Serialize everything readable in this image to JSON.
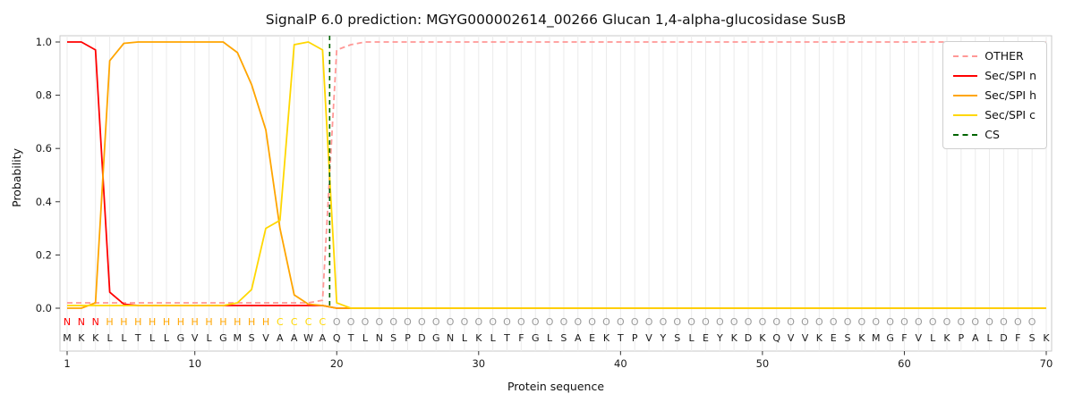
{
  "title": "SignalP 6.0 prediction: MGYG000002614_00266 Glucan 1,4-alpha-glucosidase SusB",
  "axes": {
    "xlabel": "Protein sequence",
    "ylabel": "Probability",
    "x_ticks": [
      1,
      10,
      20,
      30,
      40,
      50,
      60,
      70
    ],
    "y_ticks": [
      0.0,
      0.2,
      0.4,
      0.6,
      0.8,
      1.0
    ]
  },
  "legend": {
    "position": "top-right",
    "items": [
      {
        "label": "OTHER",
        "color": "#ff9896",
        "style": "dashed"
      },
      {
        "label": "Sec/SPI n",
        "color": "#ff0000",
        "style": "solid"
      },
      {
        "label": "Sec/SPI h",
        "color": "#ffa500",
        "style": "solid"
      },
      {
        "label": "Sec/SPI c",
        "color": "#ffd700",
        "style": "solid"
      },
      {
        "label": "CS",
        "color": "#006400",
        "style": "dashed"
      }
    ]
  },
  "chart_data": {
    "type": "line",
    "x_start": 1,
    "x_end": 70,
    "ylim": [
      -0.16,
      1.02
    ],
    "grid": "vertical-line-per-residue",
    "series": [
      {
        "name": "OTHER",
        "color": "#ff9896",
        "dash": [
          6,
          4
        ],
        "values": [
          0.02,
          0.02,
          0.02,
          0.02,
          0.02,
          0.02,
          0.02,
          0.02,
          0.02,
          0.02,
          0.02,
          0.02,
          0.02,
          0.02,
          0.02,
          0.02,
          0.02,
          0.02,
          0.03,
          0.97,
          0.99,
          1.0,
          1.0,
          1.0,
          1.0,
          1.0,
          1.0,
          1.0,
          1.0,
          1.0,
          1.0,
          1.0,
          1.0,
          1.0,
          1.0,
          1.0,
          1.0,
          1.0,
          1.0,
          1.0,
          1.0,
          1.0,
          1.0,
          1.0,
          1.0,
          1.0,
          1.0,
          1.0,
          1.0,
          1.0,
          1.0,
          1.0,
          1.0,
          1.0,
          1.0,
          1.0,
          1.0,
          1.0,
          1.0,
          1.0,
          1.0,
          1.0,
          1.0,
          1.0,
          1.0,
          1.0,
          1.0,
          1.0,
          1.0,
          1.0
        ]
      },
      {
        "name": "Sec/SPI n",
        "color": "#ff0000",
        "dash": null,
        "values": [
          1.0,
          1.0,
          0.97,
          0.06,
          0.015,
          0.01,
          0.01,
          0.01,
          0.01,
          0.01,
          0.01,
          0.01,
          0.01,
          0.01,
          0.01,
          0.01,
          0.01,
          0.01,
          0.01,
          0.0,
          0.0,
          0.0,
          0.0,
          0.0,
          0.0,
          0.0,
          0.0,
          0.0,
          0.0,
          0.0,
          0.0,
          0.0,
          0.0,
          0.0,
          0.0,
          0.0,
          0.0,
          0.0,
          0.0,
          0.0,
          0.0,
          0.0,
          0.0,
          0.0,
          0.0,
          0.0,
          0.0,
          0.0,
          0.0,
          0.0,
          0.0,
          0.0,
          0.0,
          0.0,
          0.0,
          0.0,
          0.0,
          0.0,
          0.0,
          0.0,
          0.0,
          0.0,
          0.0,
          0.0,
          0.0,
          0.0,
          0.0,
          0.0,
          0.0,
          0.0
        ]
      },
      {
        "name": "Sec/SPI h",
        "color": "#ffa500",
        "dash": null,
        "values": [
          0.0,
          0.0,
          0.02,
          0.93,
          0.995,
          1.0,
          1.0,
          1.0,
          1.0,
          1.0,
          1.0,
          1.0,
          0.96,
          0.84,
          0.67,
          0.3,
          0.05,
          0.015,
          0.01,
          0.0,
          0.0,
          0.0,
          0.0,
          0.0,
          0.0,
          0.0,
          0.0,
          0.0,
          0.0,
          0.0,
          0.0,
          0.0,
          0.0,
          0.0,
          0.0,
          0.0,
          0.0,
          0.0,
          0.0,
          0.0,
          0.0,
          0.0,
          0.0,
          0.0,
          0.0,
          0.0,
          0.0,
          0.0,
          0.0,
          0.0,
          0.0,
          0.0,
          0.0,
          0.0,
          0.0,
          0.0,
          0.0,
          0.0,
          0.0,
          0.0,
          0.0,
          0.0,
          0.0,
          0.0,
          0.0,
          0.0,
          0.0,
          0.0,
          0.0,
          0.0
        ]
      },
      {
        "name": "Sec/SPI c",
        "color": "#ffd700",
        "dash": null,
        "values": [
          0.01,
          0.01,
          0.01,
          0.01,
          0.01,
          0.01,
          0.01,
          0.01,
          0.01,
          0.01,
          0.01,
          0.01,
          0.02,
          0.07,
          0.3,
          0.33,
          0.99,
          1.0,
          0.97,
          0.02,
          0.0,
          0.0,
          0.0,
          0.0,
          0.0,
          0.0,
          0.0,
          0.0,
          0.0,
          0.0,
          0.0,
          0.0,
          0.0,
          0.0,
          0.0,
          0.0,
          0.0,
          0.0,
          0.0,
          0.0,
          0.0,
          0.0,
          0.0,
          0.0,
          0.0,
          0.0,
          0.0,
          0.0,
          0.0,
          0.0,
          0.0,
          0.0,
          0.0,
          0.0,
          0.0,
          0.0,
          0.0,
          0.0,
          0.0,
          0.0,
          0.0,
          0.0,
          0.0,
          0.0,
          0.0,
          0.0,
          0.0,
          0.0,
          0.0,
          0.0
        ]
      }
    ],
    "cs_marker": {
      "label": "CS",
      "x": 19.5,
      "color": "#006400"
    },
    "sequence": "MKKLLTLLGVLGMSVAAWAQTLNSPDGNLKLTFGLSAEKTPVYSLEYKDKQVVKESKMGFVLKPALDFSK",
    "region_labels": "NNNHHHHHHHHHHHHCCCCOOOOOOOOOOOOOOOOOOOOOOOOOOOOOOOOOOOOOOOOOOOOOOOOOO",
    "label_colors": {
      "N": "#ff0000",
      "H": "#ffa500",
      "C": "#ffd700",
      "O": "#9a9a9a"
    }
  },
  "colors": {
    "background": "#ffffff",
    "grid": "#ebebeb",
    "frame": "#c9c9c9",
    "tick_text": "#1a1a1a",
    "sequence_text": "#1a1a1a"
  }
}
